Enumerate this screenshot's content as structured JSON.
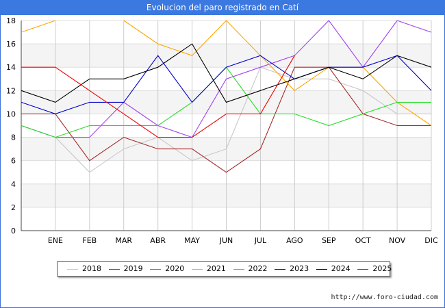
{
  "title": "Evolucion del paro registrado en Catí",
  "footer": "http://www.foro-ciudad.com",
  "chart_data": {
    "type": "line",
    "categories": [
      "",
      "ENE",
      "FEB",
      "MAR",
      "ABR",
      "MAY",
      "JUN",
      "JUL",
      "AGO",
      "SEP",
      "OCT",
      "NOV",
      "DIC"
    ],
    "ylim": [
      0,
      18
    ],
    "yticks": [
      0,
      2,
      4,
      6,
      8,
      10,
      12,
      14,
      16,
      18
    ],
    "grid": true,
    "legend_position": "bottom",
    "series": [
      {
        "name": "2018",
        "color": "#c8c8c8",
        "values": [
          9,
          8,
          5,
          7,
          8,
          6,
          7,
          14,
          13,
          13,
          12,
          10,
          10
        ]
      },
      {
        "name": "2019",
        "color": "#a52a2a",
        "values": [
          10,
          10,
          6,
          8,
          7,
          7,
          5,
          7,
          14,
          14,
          10,
          9,
          9
        ]
      },
      {
        "name": "2020",
        "color": "#a040f0",
        "values": [
          9,
          8,
          8,
          11,
          9,
          8,
          13,
          14,
          15,
          18,
          14,
          18,
          17
        ]
      },
      {
        "name": "2021",
        "color": "#ffa500",
        "values": [
          17,
          18,
          null,
          18,
          16,
          15,
          18,
          15,
          12,
          14,
          14,
          11,
          9
        ]
      },
      {
        "name": "2022",
        "color": "#22dd22",
        "values": [
          9,
          8,
          9,
          9,
          9,
          11,
          14,
          10,
          10,
          9,
          10,
          11,
          11
        ]
      },
      {
        "name": "2023",
        "color": "#0000cc",
        "values": [
          11,
          10,
          11,
          11,
          15,
          11,
          14,
          15,
          13,
          14,
          14,
          15,
          12
        ]
      },
      {
        "name": "2024",
        "color": "#000000",
        "values": [
          12,
          11,
          13,
          13,
          14,
          16,
          11,
          12,
          13,
          14,
          13,
          15,
          14
        ]
      },
      {
        "name": "2025",
        "color": "#ee0000",
        "values": [
          14,
          14,
          12,
          10,
          8,
          8,
          10,
          10,
          15,
          null,
          null,
          null,
          null
        ]
      }
    ]
  }
}
